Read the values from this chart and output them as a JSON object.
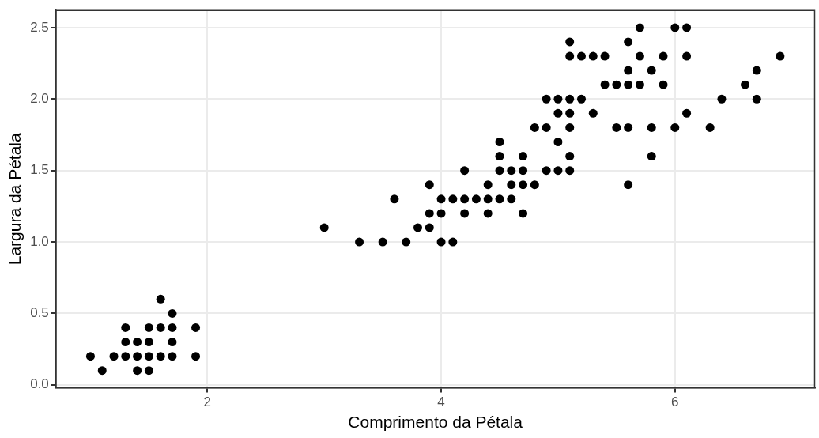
{
  "chart_data": {
    "type": "scatter",
    "xlabel": "Comprimento da Pétala",
    "ylabel": "Largura da Pétala",
    "xlim": [
      0.705,
      7.195
    ],
    "ylim": [
      -0.02,
      2.62
    ],
    "xticks": [
      2,
      4,
      6
    ],
    "yticks": [
      {
        "value": 0,
        "label": "0.0"
      },
      {
        "value": 0.5,
        "label": "0.5"
      },
      {
        "value": 1,
        "label": "1.0"
      },
      {
        "value": 1.5,
        "label": "1.5"
      },
      {
        "value": 2,
        "label": "2.0"
      },
      {
        "value": 2.5,
        "label": "2.5"
      }
    ],
    "grid": true,
    "marker": "circle",
    "series": [
      {
        "color": "#000000",
        "x": [
          1.0,
          1.1,
          1.2,
          1.3,
          1.3,
          1.3,
          1.4,
          1.4,
          1.4,
          1.5,
          1.5,
          1.5,
          1.5,
          1.6,
          1.6,
          1.6,
          1.7,
          1.7,
          1.7,
          1.7,
          1.9,
          1.9,
          3.0,
          3.3,
          3.5,
          3.6,
          3.7,
          4.0,
          4.1,
          3.8,
          3.9,
          3.9,
          4.0,
          4.2,
          4.4,
          4.7,
          4.0,
          4.1,
          4.2,
          4.3,
          4.4,
          4.5,
          4.6,
          3.9,
          4.4,
          4.6,
          4.7,
          4.8,
          5.6,
          4.2,
          4.5,
          4.6,
          4.7,
          4.9,
          5.0,
          5.1,
          4.5,
          4.7,
          5.1,
          5.8,
          4.5,
          5.0,
          4.8,
          4.9,
          5.1,
          5.5,
          5.6,
          5.8,
          6.0,
          6.3,
          5.0,
          5.1,
          5.3,
          6.1,
          4.9,
          5.0,
          5.1,
          5.2,
          6.4,
          6.7,
          5.4,
          5.5,
          5.6,
          5.7,
          5.9,
          6.6,
          5.6,
          5.8,
          6.7,
          5.1,
          5.2,
          5.3,
          5.4,
          5.7,
          5.9,
          6.1,
          6.9,
          5.1,
          5.6,
          5.7,
          6.0,
          6.1
        ],
        "values": [
          0.2,
          0.1,
          0.2,
          0.2,
          0.3,
          0.4,
          0.1,
          0.2,
          0.3,
          0.1,
          0.2,
          0.3,
          0.4,
          0.2,
          0.4,
          0.6,
          0.2,
          0.3,
          0.4,
          0.5,
          0.2,
          0.4,
          1.1,
          1.0,
          1.0,
          1.3,
          1.0,
          1.0,
          1.0,
          1.1,
          1.1,
          1.2,
          1.2,
          1.2,
          1.2,
          1.2,
          1.3,
          1.3,
          1.3,
          1.3,
          1.3,
          1.3,
          1.3,
          1.4,
          1.4,
          1.4,
          1.4,
          1.4,
          1.4,
          1.5,
          1.5,
          1.5,
          1.5,
          1.5,
          1.5,
          1.5,
          1.6,
          1.6,
          1.6,
          1.6,
          1.7,
          1.7,
          1.8,
          1.8,
          1.8,
          1.8,
          1.8,
          1.8,
          1.8,
          1.8,
          1.9,
          1.9,
          1.9,
          1.9,
          2.0,
          2.0,
          2.0,
          2.0,
          2.0,
          2.0,
          2.1,
          2.1,
          2.1,
          2.1,
          2.1,
          2.1,
          2.2,
          2.2,
          2.2,
          2.3,
          2.3,
          2.3,
          2.3,
          2.3,
          2.3,
          2.3,
          2.3,
          2.4,
          2.4,
          2.5,
          2.5,
          2.5
        ]
      }
    ]
  }
}
